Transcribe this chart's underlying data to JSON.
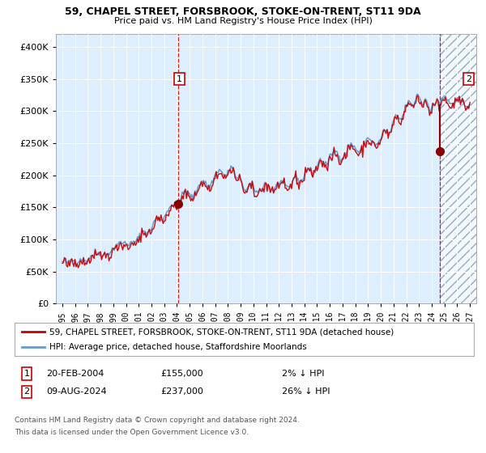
{
  "title1": "59, CHAPEL STREET, FORSBROOK, STOKE-ON-TRENT, ST11 9DA",
  "title2": "Price paid vs. HM Land Registry's House Price Index (HPI)",
  "legend1": "59, CHAPEL STREET, FORSBROOK, STOKE-ON-TRENT, ST11 9DA (detached house)",
  "legend2": "HPI: Average price, detached house, Staffordshire Moorlands",
  "annotation1_date": "20-FEB-2004",
  "annotation1_price": "£155,000",
  "annotation1_hpi": "2% ↓ HPI",
  "annotation2_date": "09-AUG-2024",
  "annotation2_price": "£237,000",
  "annotation2_hpi": "26% ↓ HPI",
  "footer1": "Contains HM Land Registry data © Crown copyright and database right 2024.",
  "footer2": "This data is licensed under the Open Government Licence v3.0.",
  "hpi_color": "#6699cc",
  "price_color": "#cc0000",
  "marker_color": "#880000",
  "bg_color": "#ddeeff",
  "ylim": [
    0,
    420000
  ],
  "yticks": [
    0,
    50000,
    100000,
    150000,
    200000,
    250000,
    300000,
    350000,
    400000
  ],
  "sale1_year": 2004.12,
  "sale1_price": 155000,
  "sale2_year": 2024.62,
  "sale2_price": 237000,
  "xmin": 1994.5,
  "xmax": 2027.5
}
